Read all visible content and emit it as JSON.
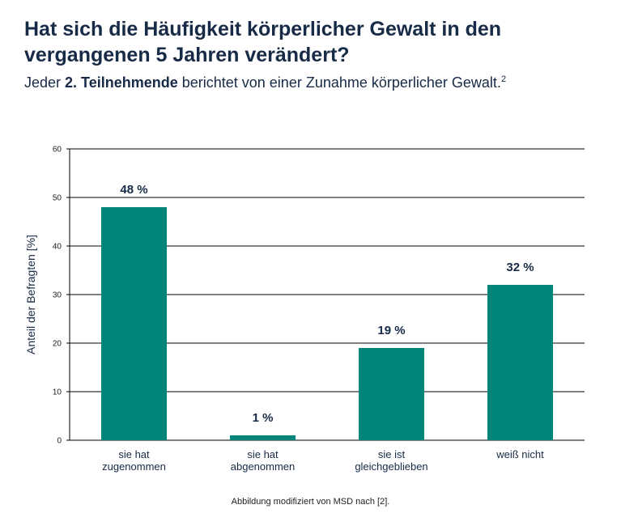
{
  "header": {
    "title": "Hat sich die Häufigkeit körperlicher Gewalt in den vergangenen 5 Jahren verändert?",
    "subtitle_pre": "Jeder ",
    "subtitle_bold": "2. Teilnehmende",
    "subtitle_post": " berichtet von einer Zunahme körperlicher Gewalt.",
    "subtitle_sup": "2"
  },
  "footer": {
    "source": "Abbildung modifiziert von MSD nach [2]."
  },
  "colors": {
    "bar": "#00857a",
    "text": "#172a46",
    "grid": "#000000"
  },
  "chart_data": {
    "type": "bar",
    "title": "",
    "xlabel": "",
    "ylabel": "Anteil der Befragten [%]",
    "ylim": [
      0,
      60
    ],
    "yticks": [
      0,
      10,
      20,
      30,
      40,
      50,
      60
    ],
    "grid": true,
    "categories": [
      [
        "sie hat",
        "zugenommen"
      ],
      [
        "sie hat",
        "abgenommen"
      ],
      [
        "sie ist",
        "gleichgeblieben"
      ],
      [
        "weiß nicht"
      ]
    ],
    "values": [
      48,
      1,
      19,
      32
    ],
    "value_labels": [
      "48 %",
      "1 %",
      "19 %",
      "32 %"
    ]
  }
}
